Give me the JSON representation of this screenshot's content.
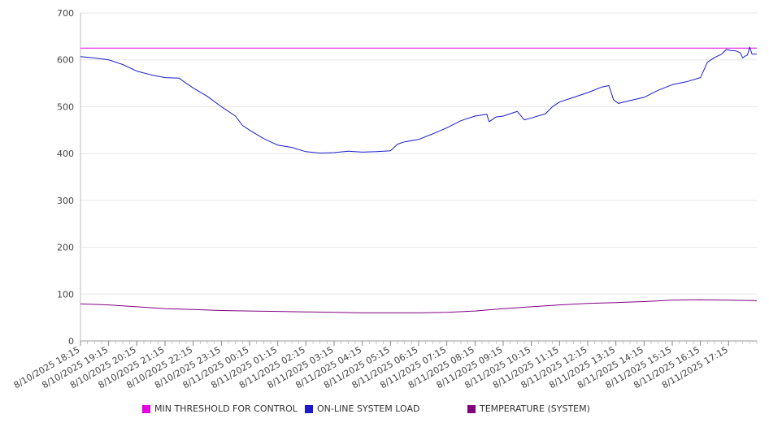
{
  "chart_data": {
    "type": "line",
    "title": "",
    "xlabel": "",
    "ylabel": "",
    "ylim": [
      0,
      700
    ],
    "yticks": [
      0,
      100,
      200,
      300,
      400,
      500,
      600,
      700
    ],
    "grid": "horizontal",
    "legend_position": "bottom",
    "x_start": "8/10/2025 18:15",
    "x_end": "8/11/2025 18:15",
    "x_tick_labels": [
      "8/10/2025 18:15",
      "8/10/2025 19:15",
      "8/10/2025 20:15",
      "8/10/2025 21:15",
      "8/10/2025 22:15",
      "8/10/2025 23:15",
      "8/11/2025 00:15",
      "8/11/2025 01:15",
      "8/11/2025 02:15",
      "8/11/2025 03:15",
      "8/11/2025 04:15",
      "8/11/2025 05:15",
      "8/11/2025 06:15",
      "8/11/2025 07:15",
      "8/11/2025 08:15",
      "8/11/2025 09:15",
      "8/11/2025 10:15",
      "8/11/2025 11:15",
      "8/11/2025 12:15",
      "8/11/2025 13:15",
      "8/11/2025 14:15",
      "8/11/2025 15:15",
      "8/11/2025 16:15",
      "8/11/2025 17:15"
    ],
    "series": [
      {
        "name": "MIN THRESHOLD FOR CONTROL",
        "color": "#e000e0",
        "points": [
          [
            "8/10/2025 18:15",
            625
          ],
          [
            "8/11/2025 18:15",
            625
          ]
        ]
      },
      {
        "name": "ON-LINE SYSTEM LOAD",
        "color": "#1a1acc",
        "points": [
          [
            "8/10/2025 18:15",
            607
          ],
          [
            "8/10/2025 18:45",
            604
          ],
          [
            "8/10/2025 19:15",
            600
          ],
          [
            "8/10/2025 19:45",
            590
          ],
          [
            "8/10/2025 20:15",
            576
          ],
          [
            "8/10/2025 20:45",
            568
          ],
          [
            "8/10/2025 21:15",
            562
          ],
          [
            "8/10/2025 21:45",
            561
          ],
          [
            "8/10/2025 22:00",
            550
          ],
          [
            "8/10/2025 22:15",
            540
          ],
          [
            "8/10/2025 22:45",
            522
          ],
          [
            "8/10/2025 23:15",
            500
          ],
          [
            "8/10/2025 23:45",
            480
          ],
          [
            "8/11/2025 00:00",
            460
          ],
          [
            "8/11/2025 00:15",
            450
          ],
          [
            "8/11/2025 00:45",
            432
          ],
          [
            "8/11/2025 01:15",
            418
          ],
          [
            "8/11/2025 01:45",
            413
          ],
          [
            "8/11/2025 02:15",
            404
          ],
          [
            "8/11/2025 02:45",
            401
          ],
          [
            "8/11/2025 03:15",
            402
          ],
          [
            "8/11/2025 03:45",
            405
          ],
          [
            "8/11/2025 04:15",
            403
          ],
          [
            "8/11/2025 04:45",
            404
          ],
          [
            "8/11/2025 05:15",
            406
          ],
          [
            "8/11/2025 05:30",
            420
          ],
          [
            "8/11/2025 05:45",
            425
          ],
          [
            "8/11/2025 06:15",
            430
          ],
          [
            "8/11/2025 06:45",
            442
          ],
          [
            "8/11/2025 07:15",
            455
          ],
          [
            "8/11/2025 07:45",
            470
          ],
          [
            "8/11/2025 08:15",
            480
          ],
          [
            "8/11/2025 08:40",
            484
          ],
          [
            "8/11/2025 08:45",
            468
          ],
          [
            "8/11/2025 09:00",
            478
          ],
          [
            "8/11/2025 09:15",
            480
          ],
          [
            "8/11/2025 09:45",
            490
          ],
          [
            "8/11/2025 10:00",
            472
          ],
          [
            "8/11/2025 10:15",
            476
          ],
          [
            "8/11/2025 10:45",
            485
          ],
          [
            "8/11/2025 11:00",
            500
          ],
          [
            "8/11/2025 11:15",
            510
          ],
          [
            "8/11/2025 11:45",
            520
          ],
          [
            "8/11/2025 12:15",
            530
          ],
          [
            "8/11/2025 12:45",
            542
          ],
          [
            "8/11/2025 13:00",
            545
          ],
          [
            "8/11/2025 13:10",
            515
          ],
          [
            "8/11/2025 13:20",
            507
          ],
          [
            "8/11/2025 13:45",
            513
          ],
          [
            "8/11/2025 14:15",
            520
          ],
          [
            "8/11/2025 14:45",
            535
          ],
          [
            "8/11/2025 15:15",
            547
          ],
          [
            "8/11/2025 15:45",
            553
          ],
          [
            "8/11/2025 16:15",
            562
          ],
          [
            "8/11/2025 16:30",
            595
          ],
          [
            "8/11/2025 16:45",
            605
          ],
          [
            "8/11/2025 17:00",
            612
          ],
          [
            "8/11/2025 17:10",
            622
          ],
          [
            "8/11/2025 17:20",
            620
          ],
          [
            "8/11/2025 17:30",
            619
          ],
          [
            "8/11/2025 17:40",
            615
          ],
          [
            "8/11/2025 17:45",
            604
          ],
          [
            "8/11/2025 17:50",
            608
          ],
          [
            "8/11/2025 17:55",
            610
          ],
          [
            "8/11/2025 18:00",
            627
          ],
          [
            "8/11/2025 18:05",
            612
          ],
          [
            "8/11/2025 18:15",
            612
          ]
        ]
      },
      {
        "name": "TEMPERATURE (SYSTEM)",
        "color": "#800080",
        "points": [
          [
            "8/10/2025 18:15",
            79
          ],
          [
            "8/10/2025 19:15",
            77
          ],
          [
            "8/10/2025 20:15",
            73
          ],
          [
            "8/10/2025 21:15",
            69
          ],
          [
            "8/10/2025 22:15",
            67
          ],
          [
            "8/10/2025 23:15",
            65
          ],
          [
            "8/11/2025 00:15",
            64
          ],
          [
            "8/11/2025 01:15",
            63
          ],
          [
            "8/11/2025 02:15",
            62
          ],
          [
            "8/11/2025 03:15",
            61
          ],
          [
            "8/11/2025 04:15",
            60
          ],
          [
            "8/11/2025 05:15",
            60
          ],
          [
            "8/11/2025 06:15",
            60
          ],
          [
            "8/11/2025 07:15",
            61
          ],
          [
            "8/11/2025 08:15",
            64
          ],
          [
            "8/11/2025 09:15",
            69
          ],
          [
            "8/11/2025 10:15",
            73
          ],
          [
            "8/11/2025 11:15",
            77
          ],
          [
            "8/11/2025 12:15",
            80
          ],
          [
            "8/11/2025 13:15",
            82
          ],
          [
            "8/11/2025 14:15",
            84
          ],
          [
            "8/11/2025 15:15",
            87
          ],
          [
            "8/11/2025 16:15",
            88
          ],
          [
            "8/11/2025 17:15",
            87
          ],
          [
            "8/11/2025 18:15",
            86
          ]
        ]
      }
    ]
  }
}
